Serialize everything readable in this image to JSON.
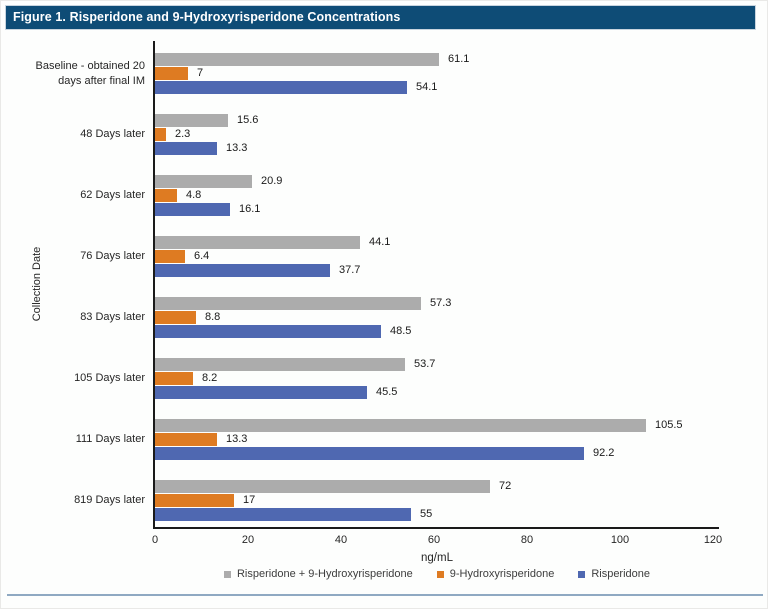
{
  "header": {
    "title": "Figure 1. Risperidone and 9-Hydroxyrisperidone Concentrations",
    "bg_color": "#0E4C76",
    "text_color": "#FFFFFF"
  },
  "chart_data": {
    "type": "bar",
    "orientation": "horizontal",
    "title": "Figure 1. Risperidone and 9-Hydroxyrisperidone Concentrations",
    "xlabel": "ng/mL",
    "ylabel": "Collection Date",
    "xlim": [
      0,
      120
    ],
    "xticks": [
      0,
      20,
      40,
      60,
      80,
      100,
      120
    ],
    "grid": false,
    "legend_position": "bottom",
    "categories": [
      "Baseline - obtained 20 days after final IM",
      "48 Days later",
      "62 Days later",
      "76 Days later",
      "83 Days later",
      "105 Days later",
      "111 Days later",
      "819 Days later"
    ],
    "series": [
      {
        "name": "Risperidone + 9-Hydroxyrisperidone",
        "color": "#ACACAC",
        "values": [
          61.1,
          15.6,
          20.9,
          44.1,
          57.3,
          53.7,
          105.5,
          72
        ]
      },
      {
        "name": "9-Hydroxyrisperidone",
        "color": "#DE7B22",
        "values": [
          7,
          2.3,
          4.8,
          6.4,
          8.8,
          8.2,
          13.3,
          17
        ]
      },
      {
        "name": "Risperidone",
        "color": "#4F68B1",
        "values": [
          54.1,
          13.3,
          16.1,
          37.7,
          48.5,
          45.5,
          92.2,
          55
        ]
      }
    ]
  },
  "colors": {
    "axis": "#1A1A1A",
    "divider": "#8FA9C2"
  }
}
